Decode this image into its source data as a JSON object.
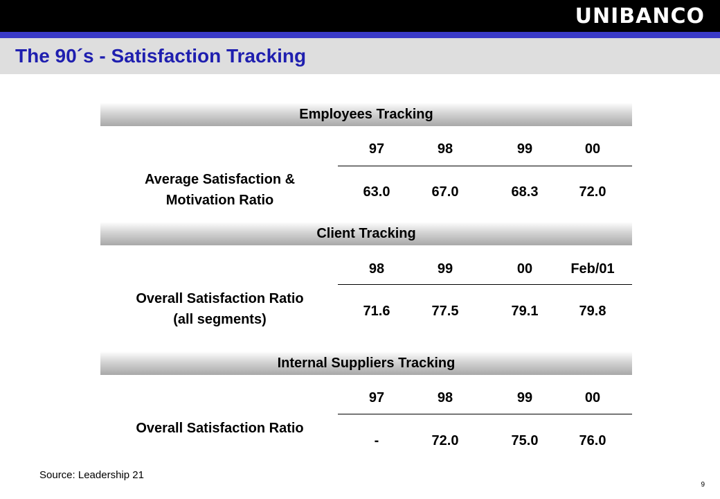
{
  "header": {
    "logo_text": "UNIBANCO",
    "title": "The 90´s - Satisfaction Tracking"
  },
  "sections": [
    {
      "heading": "Employees Tracking",
      "label_lines": [
        "Average Satisfaction &",
        "Motivation Ratio"
      ],
      "columns": [
        "97",
        "98",
        "99",
        "00"
      ],
      "values": [
        "63.0",
        "67.0",
        "68.3",
        "72.0"
      ]
    },
    {
      "heading": "Client Tracking",
      "label_lines": [
        "Overall Satisfaction Ratio",
        "(all segments)"
      ],
      "columns": [
        "98",
        "99",
        "00",
        "Feb/01"
      ],
      "values": [
        "71.6",
        "77.5",
        "79.1",
        "79.8"
      ]
    },
    {
      "heading": "Internal Suppliers Tracking",
      "label_lines": [
        "Overall Satisfaction Ratio"
      ],
      "columns": [
        "97",
        "98",
        "99",
        "00"
      ],
      "values": [
        "-",
        "72.0",
        "75.0",
        "76.0"
      ]
    }
  ],
  "footer": {
    "source": "Source: Leadership 21",
    "page_number": "9"
  }
}
